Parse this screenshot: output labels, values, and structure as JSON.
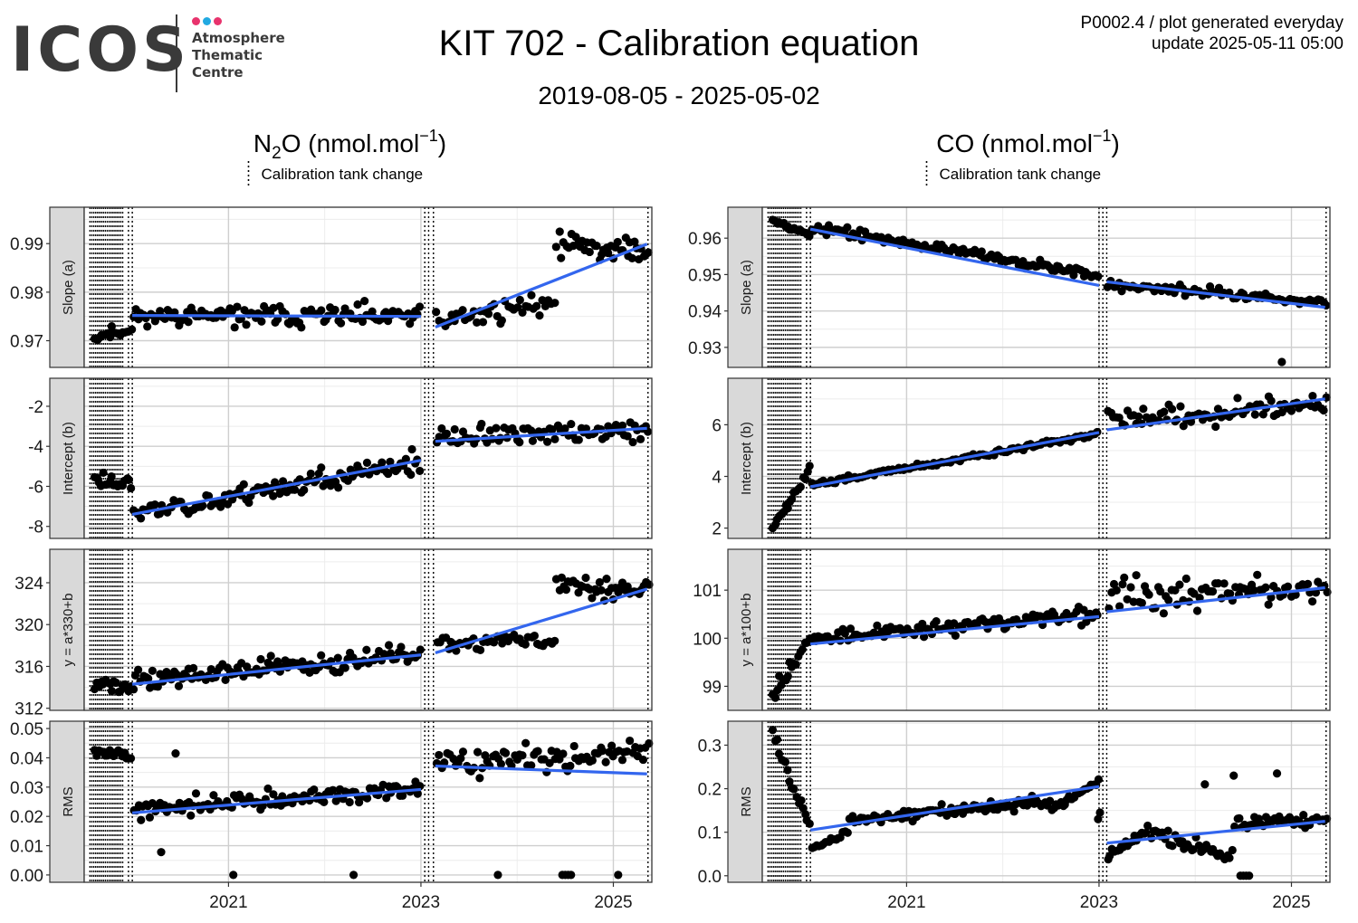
{
  "header": {
    "logo_text": "ICOS",
    "logo_subtitle_lines": [
      "Atmosphere",
      "Thematic",
      "Centre"
    ],
    "logo_dot_colors": [
      "#e8336d",
      "#21a9e1",
      "#e8336d"
    ],
    "title": "KIT 702 - Calibration equation",
    "subtitle": "2019-08-05 - 2025-05-02",
    "meta_line1": "P0002.4 / plot generated everyday",
    "meta_line2": "update  2025-05-11 05:00"
  },
  "colors": {
    "points": "#000000",
    "fit": "#3366ee",
    "strip_fill": "#d9d9d9",
    "grid_major": "#cfcfcf",
    "grid_minor": "#ececec"
  },
  "chart_data": [
    {
      "type": "scatter",
      "gas_title": "N2O (nmol.mol-1)",
      "legend_label": "Calibration tank change",
      "x_ticks": [
        "2021",
        "2023",
        "2025"
      ],
      "x_tick_values": [
        2021.0,
        2023.0,
        2025.0
      ],
      "xlim": [
        2019.5,
        2025.4
      ],
      "tank_changes": [
        2019.56,
        2019.58,
        2019.6,
        2019.62,
        2019.64,
        2019.66,
        2019.68,
        2019.7,
        2019.72,
        2019.74,
        2019.76,
        2019.78,
        2019.8,
        2019.82,
        2019.84,
        2019.86,
        2019.88,
        2019.9,
        2019.96,
        2020.0,
        2023.04,
        2023.08,
        2023.13,
        2025.36
      ],
      "panels": [
        {
          "strip": "Slope (a)",
          "ylim": [
            0.9645,
            0.9975
          ],
          "y_ticks": [
            "0.97",
            "0.98",
            "0.99"
          ],
          "y_tick_values": [
            0.97,
            0.98,
            0.99
          ],
          "fits": [
            [
              2020.0,
              0.9752,
              2023.0,
              0.975
            ],
            [
              2023.15,
              0.9728,
              2025.35,
              0.9899
            ]
          ],
          "seed": 11,
          "segments": [
            [
              2019.6,
              2020.0,
              18,
              0.971,
              0.9722,
              0.0018
            ],
            [
              2020.0,
              2023.0,
              120,
              0.9752,
              0.975,
              0.003
            ],
            [
              2023.15,
              2024.4,
              42,
              0.974,
              0.978,
              0.0035
            ],
            [
              2024.4,
              2025.38,
              40,
              0.99,
              0.9885,
              0.004
            ]
          ]
        },
        {
          "strip": "Intercept (b)",
          "ylim": [
            -8.6,
            -0.6
          ],
          "y_ticks": [
            "-8",
            "-6",
            "-4",
            "-2"
          ],
          "y_tick_values": [
            -8,
            -6,
            -4,
            -2
          ],
          "fits": [
            [
              2020.0,
              -7.4,
              2023.0,
              -4.7
            ],
            [
              2023.15,
              -3.75,
              2025.35,
              -3.1
            ]
          ],
          "seed": 23,
          "segments": [
            [
              2019.6,
              2020.0,
              18,
              -5.6,
              -5.9,
              0.65
            ],
            [
              2020.0,
              2023.0,
              120,
              -7.4,
              -4.8,
              0.75
            ],
            [
              2023.15,
              2025.38,
              80,
              -3.6,
              -3.2,
              0.75
            ]
          ]
        },
        {
          "strip": "y = a*330+b",
          "ylim": [
            311.8,
            327.2
          ],
          "y_ticks": [
            "312",
            "316",
            "320",
            "324"
          ],
          "y_tick_values": [
            312,
            316,
            320,
            324
          ],
          "fits": [
            [
              2020.0,
              314.3,
              2023.0,
              317.1
            ],
            [
              2023.15,
              317.3,
              2025.35,
              323.4
            ]
          ],
          "seed": 37,
          "segments": [
            [
              2019.6,
              2020.0,
              18,
              314.6,
              313.8,
              1.1
            ],
            [
              2020.0,
              2023.0,
              120,
              314.6,
              317.2,
              1.3
            ],
            [
              2023.15,
              2024.4,
              42,
              318.2,
              318.6,
              1.1
            ],
            [
              2024.4,
              2025.38,
              40,
              323.4,
              323.6,
              1.4
            ]
          ]
        },
        {
          "strip": "RMS",
          "ylim": [
            -0.0025,
            0.0525
          ],
          "y_ticks": [
            "0.00",
            "0.01",
            "0.02",
            "0.03",
            "0.04",
            "0.05"
          ],
          "y_tick_values": [
            0.0,
            0.01,
            0.02,
            0.03,
            0.04,
            0.05
          ],
          "fits": [
            [
              2020.0,
              0.0212,
              2023.0,
              0.0292
            ],
            [
              2023.15,
              0.0372,
              2025.35,
              0.0345
            ]
          ],
          "seed": 41,
          "segments": [
            [
              2019.6,
              2020.0,
              18,
              0.0415,
              0.0405,
              0.0025
            ],
            [
              2020.0,
              2023.0,
              120,
              0.0225,
              0.029,
              0.0045
            ],
            [
              2023.15,
              2025.38,
              80,
              0.038,
              0.042,
              0.0055
            ]
          ],
          "extra_points": [
            [
              2021.05,
              0.0
            ],
            [
              2022.3,
              0.0
            ],
            [
              2023.8,
              0.0
            ],
            [
              2024.47,
              0.0
            ],
            [
              2024.5,
              0.0
            ],
            [
              2024.53,
              0.0
            ],
            [
              2024.56,
              0.0
            ],
            [
              2025.05,
              0.0
            ],
            [
              2020.3,
              0.0078
            ],
            [
              2020.45,
              0.0415
            ]
          ]
        }
      ]
    },
    {
      "type": "scatter",
      "gas_title": "CO (nmol.mol-1)",
      "legend_label": "Calibration tank change",
      "x_ticks": [
        "2021",
        "2023",
        "2025"
      ],
      "x_tick_values": [
        2021.0,
        2023.0,
        2025.0
      ],
      "xlim": [
        2019.5,
        2025.4
      ],
      "tank_changes": [
        2019.56,
        2019.58,
        2019.6,
        2019.62,
        2019.64,
        2019.66,
        2019.68,
        2019.7,
        2019.72,
        2019.74,
        2019.76,
        2019.78,
        2019.8,
        2019.82,
        2019.84,
        2019.86,
        2019.88,
        2019.9,
        2019.96,
        2020.0,
        2023.0,
        2023.04,
        2023.08,
        2025.36
      ],
      "panels": [
        {
          "strip": "Slope (a)",
          "ylim": [
            0.9245,
            0.9685
          ],
          "y_ticks": [
            "0.93",
            "0.94",
            "0.95",
            "0.96"
          ],
          "y_tick_values": [
            0.93,
            0.94,
            0.95,
            0.96
          ],
          "fits": [
            [
              2020.0,
              0.9625,
              2023.0,
              0.947
            ],
            [
              2023.08,
              0.948,
              2025.35,
              0.941
            ]
          ],
          "seed": 53,
          "segments": [
            [
              2019.6,
              2020.0,
              18,
              0.9655,
              0.9605,
              0.0012
            ],
            [
              2020.0,
              2023.0,
              120,
              0.963,
              0.95,
              0.0018
            ],
            [
              2023.08,
              2025.38,
              80,
              0.947,
              0.9425,
              0.0022
            ]
          ],
          "extra_points": [
            [
              2024.9,
              0.926
            ]
          ]
        },
        {
          "strip": "Intercept (b)",
          "ylim": [
            1.6,
            7.8
          ],
          "y_ticks": [
            "2",
            "4",
            "6"
          ],
          "y_tick_values": [
            2,
            4,
            6
          ],
          "fits": [
            [
              2020.0,
              3.6,
              2023.0,
              5.7
            ],
            [
              2023.08,
              5.8,
              2025.35,
              7.0
            ]
          ],
          "seed": 67,
          "segments": [
            [
              2019.6,
              2020.0,
              18,
              2.1,
              4.3,
              0.35
            ],
            [
              2020.0,
              2023.0,
              120,
              3.65,
              5.65,
              0.14
            ],
            [
              2023.08,
              2025.38,
              80,
              6.1,
              6.9,
              0.55
            ]
          ]
        },
        {
          "strip": "y = a*100+b",
          "ylim": [
            98.5,
            101.85
          ],
          "y_ticks": [
            "99",
            "100",
            "101"
          ],
          "y_tick_values": [
            99,
            100,
            101
          ],
          "fits": [
            [
              2020.0,
              99.88,
              2023.0,
              100.45
            ],
            [
              2023.08,
              100.55,
              2025.35,
              101.05
            ]
          ],
          "seed": 79,
          "segments": [
            [
              2019.6,
              2020.0,
              18,
              98.8,
              100.0,
              0.3
            ],
            [
              2020.0,
              2023.0,
              120,
              100.0,
              100.5,
              0.22
            ],
            [
              2023.08,
              2025.38,
              80,
              100.9,
              101.0,
              0.45
            ]
          ]
        },
        {
          "strip": "RMS",
          "ylim": [
            -0.015,
            0.355
          ],
          "y_ticks": [
            "0.0",
            "0.1",
            "0.2",
            "0.3"
          ],
          "y_tick_values": [
            0.0,
            0.1,
            0.2,
            0.3
          ],
          "fits": [
            [
              2020.0,
              0.105,
              2023.0,
              0.205
            ],
            [
              2023.08,
              0.075,
              2025.35,
              0.125
            ]
          ],
          "seed": 83,
          "segments": [
            [
              2019.6,
              2020.0,
              18,
              0.33,
              0.11,
              0.02
            ],
            [
              2020.0,
              2020.4,
              16,
              0.06,
              0.1,
              0.01
            ],
            [
              2020.4,
              2022.5,
              90,
              0.13,
              0.17,
              0.018
            ],
            [
              2022.5,
              2023.0,
              22,
              0.15,
              0.22,
              0.01
            ],
            [
              2023.08,
              2023.5,
              18,
              0.04,
              0.1,
              0.015
            ],
            [
              2023.5,
              2024.4,
              36,
              0.1,
              0.04,
              0.03
            ],
            [
              2024.4,
              2025.38,
              40,
              0.12,
              0.13,
              0.02
            ]
          ],
          "extra_points": [
            [
              2022.99,
              0.13
            ],
            [
              2023.01,
              0.145
            ],
            [
              2024.47,
              0.0
            ],
            [
              2024.5,
              0.0
            ],
            [
              2024.53,
              0.0
            ],
            [
              2024.56,
              0.0
            ],
            [
              2024.85,
              0.235
            ],
            [
              2024.4,
              0.23
            ],
            [
              2024.1,
              0.21
            ]
          ]
        }
      ]
    }
  ]
}
